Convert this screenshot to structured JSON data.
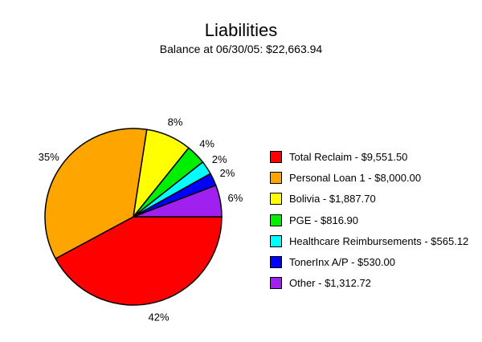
{
  "chart_data": {
    "type": "pie",
    "title": "Liabilities",
    "subtitle": "Balance at 06/30/05: $22,663.94",
    "start_angle_deg": 0,
    "direction": "clockwise",
    "slices": [
      {
        "label": "Total Reclaim - $9,551.50",
        "value": 9551.5,
        "percent_label": "42%",
        "color": "#ff0000"
      },
      {
        "label": "Personal Loan 1 - $8,000.00",
        "value": 8000.0,
        "percent_label": "35%",
        "color": "#ffa500"
      },
      {
        "label": "Bolivia - $1,887.70",
        "value": 1887.7,
        "percent_label": "8%",
        "color": "#ffff00"
      },
      {
        "label": "PGE - $816.90",
        "value": 816.9,
        "percent_label": "4%",
        "color": "#00ee00"
      },
      {
        "label": "Healthcare Reimbursements - $565.12",
        "value": 565.12,
        "percent_label": "2%",
        "color": "#00ffff"
      },
      {
        "label": "TonerInx A/P - $530.00",
        "value": 530.0,
        "percent_label": "2%",
        "color": "#0000ff"
      },
      {
        "label": "Other - $1,312.72",
        "value": 1312.72,
        "percent_label": "6%",
        "color": "#a020f0"
      }
    ],
    "legend_position": "right"
  }
}
